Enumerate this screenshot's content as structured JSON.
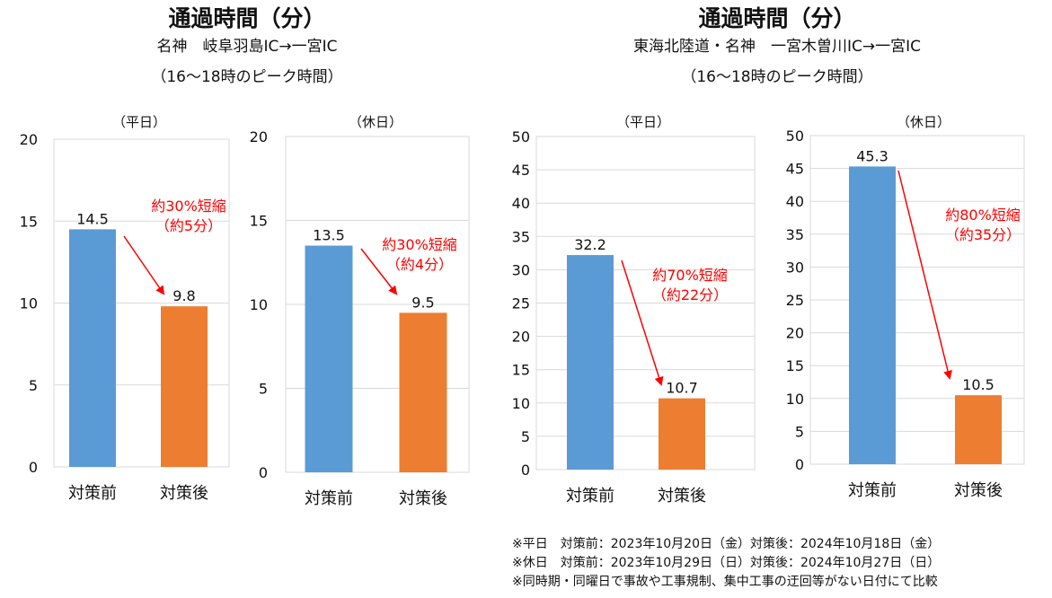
{
  "sections": [
    {
      "title": "通過時間（分）",
      "route": "名神　岐阜羽島IC→一宮IC",
      "period": "（16～18時のピーク時間）"
    },
    {
      "title": "通過時間（分）",
      "route": "東海北陸道・名神　一宮木曽川IC→一宮IC",
      "period": "（16～18時のピーク時間）"
    }
  ],
  "colors": {
    "before": "#5b9bd5",
    "after": "#ed7d31",
    "annotation": "#ff0000",
    "grid": "#d9d9d9"
  },
  "chart_data": [
    {
      "type": "bar",
      "subtitle": "（平日）",
      "categories": [
        "対策前",
        "対策後"
      ],
      "values": [
        14.5,
        9.8
      ],
      "ylim": [
        0,
        20
      ],
      "yticks": [
        0,
        5,
        10,
        15,
        20
      ],
      "annotation": [
        "約30%短縮",
        "（約5分）"
      ],
      "grid": true
    },
    {
      "type": "bar",
      "subtitle": "（休日）",
      "categories": [
        "対策前",
        "対策後"
      ],
      "values": [
        13.5,
        9.5
      ],
      "ylim": [
        0,
        20
      ],
      "yticks": [
        0,
        5,
        10,
        15,
        20
      ],
      "annotation": [
        "約30%短縮",
        "（約4分）"
      ],
      "grid": true
    },
    {
      "type": "bar",
      "subtitle": "（平日）",
      "categories": [
        "対策前",
        "対策後"
      ],
      "values": [
        32.2,
        10.7
      ],
      "ylim": [
        0,
        50
      ],
      "yticks": [
        0,
        5,
        10,
        15,
        20,
        25,
        30,
        35,
        40,
        45,
        50
      ],
      "annotation": [
        "約70%短縮",
        "（約22分）"
      ],
      "grid": true
    },
    {
      "type": "bar",
      "subtitle": "（休日）",
      "categories": [
        "対策前",
        "対策後"
      ],
      "values": [
        45.3,
        10.5
      ],
      "ylim": [
        0,
        50
      ],
      "yticks": [
        0,
        5,
        10,
        15,
        20,
        25,
        30,
        35,
        40,
        45,
        50
      ],
      "annotation": [
        "約80%短縮",
        "（約35分）"
      ],
      "grid": true
    }
  ],
  "notes": [
    "※平日　対策前：2023年10月20日（金）対策後：2024年10月18日（金）",
    "※休日　対策前：2023年10月29日（日）対策後：2024年10月27日（日）",
    "※同時期・同曜日で事故や工事規制、集中工事の迂回等がない日付にて比較"
  ]
}
